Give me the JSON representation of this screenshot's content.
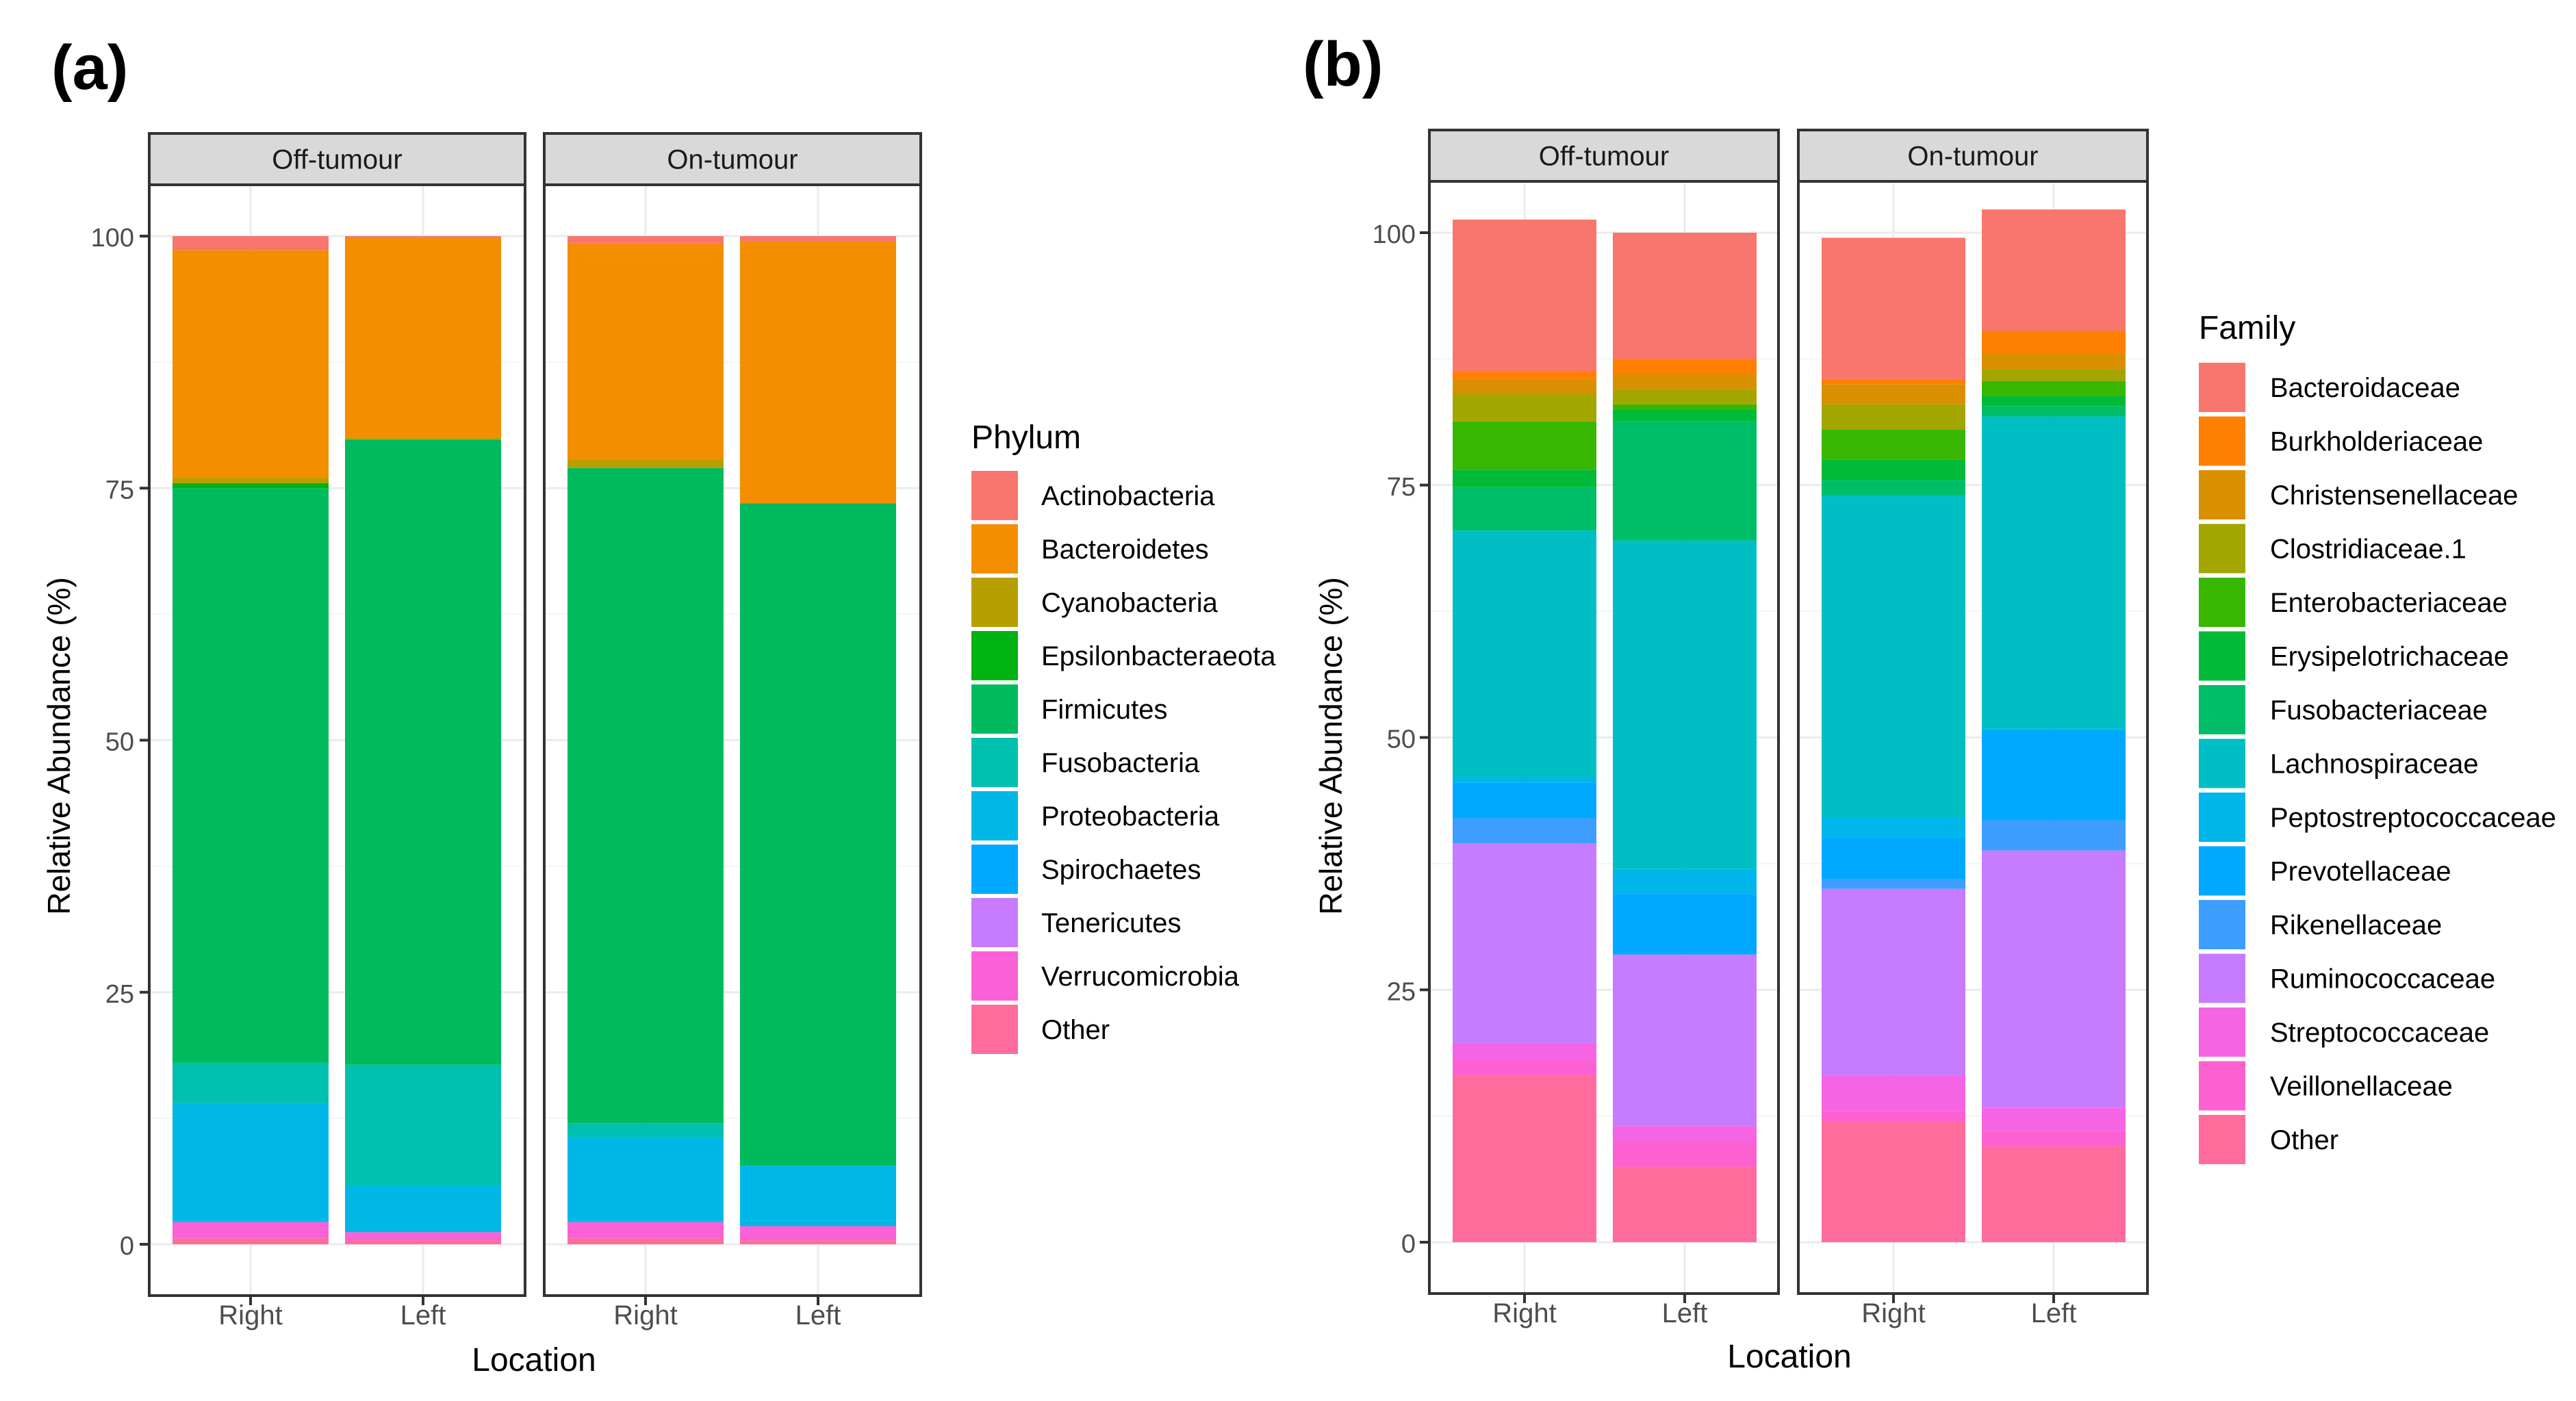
{
  "panels": [
    {
      "label": "(a)",
      "ylabel": "Relative Abundance (%)",
      "xlabel": "Location",
      "legend_title": "Phylum"
    },
    {
      "label": "(b)",
      "ylabel": "Relative Abundance (%)",
      "xlabel": "Location",
      "legend_title": "Family"
    }
  ],
  "chart_data": [
    {
      "type": "bar",
      "stacked": true,
      "facets": [
        "Off-tumour",
        "On-tumour"
      ],
      "categories": [
        "Right",
        "Left"
      ],
      "xlabel": "Location",
      "ylabel": "Relative Abundance (%)",
      "ylim": [
        0,
        100
      ],
      "yticks": [
        0,
        25,
        50,
        75,
        100
      ],
      "grid": true,
      "legend_title": "Phylum",
      "legend_position": "right",
      "series": [
        {
          "name": "Other",
          "color": "#FF6C9C",
          "values": [
            [
              0.6,
              0.4
            ],
            [
              0.6,
              0.4
            ]
          ]
        },
        {
          "name": "Verrucomicrobia",
          "color": "#FB61D7",
          "values": [
            [
              1.6,
              0.8
            ],
            [
              1.6,
              1.4
            ]
          ]
        },
        {
          "name": "Tenericutes",
          "color": "#C77CFF",
          "values": [
            [
              0.0,
              0.0
            ],
            [
              0.0,
              0.0
            ]
          ]
        },
        {
          "name": "Spirochaetes",
          "color": "#00A9FF",
          "values": [
            [
              0.0,
              0.0
            ],
            [
              0.0,
              0.0
            ]
          ]
        },
        {
          "name": "Proteobacteria",
          "color": "#00B8E7",
          "values": [
            [
              11.8,
              4.6
            ],
            [
              8.4,
              6.0
            ]
          ]
        },
        {
          "name": "Fusobacteria",
          "color": "#00C0AF",
          "values": [
            [
              4.0,
              12.0
            ],
            [
              1.4,
              0.0
            ]
          ]
        },
        {
          "name": "Firmicutes",
          "color": "#00BA5E",
          "values": [
            [
              57.0,
              62.0
            ],
            [
              65.0,
              65.7
            ]
          ]
        },
        {
          "name": "Epsilonbacteraeota",
          "color": "#00B212",
          "values": [
            [
              0.5,
              0.0
            ],
            [
              0.0,
              0.0
            ]
          ]
        },
        {
          "name": "Cyanobacteria",
          "color": "#B79F00",
          "values": [
            [
              0.5,
              0.2
            ],
            [
              0.8,
              0.0
            ]
          ]
        },
        {
          "name": "Bacteroidetes",
          "color": "#F28E00",
          "values": [
            [
              22.6,
              19.8
            ],
            [
              21.5,
              26.0
            ]
          ]
        },
        {
          "name": "Actinobacteria",
          "color": "#F8766D",
          "values": [
            [
              1.4,
              0.2
            ],
            [
              0.7,
              0.5
            ]
          ]
        }
      ]
    },
    {
      "type": "bar",
      "stacked": true,
      "facets": [
        "Off-tumour",
        "On-tumour"
      ],
      "categories": [
        "Right",
        "Left"
      ],
      "xlabel": "Location",
      "ylabel": "Relative Abundance (%)",
      "ylim": [
        0,
        100
      ],
      "yticks": [
        0,
        25,
        50,
        75,
        100
      ],
      "grid": true,
      "legend_title": "Family",
      "legend_position": "right",
      "series": [
        {
          "name": "Other",
          "color": "#FF6C9C",
          "values": [
            [
              16.5,
              7.5
            ],
            [
              12.0,
              9.5
            ]
          ]
        },
        {
          "name": "Veillonellaceae",
          "color": "#FD61D1",
          "values": [
            [
              1.5,
              2.5
            ],
            [
              1.0,
              1.5
            ]
          ]
        },
        {
          "name": "Streptococcaceae",
          "color": "#F564E3",
          "values": [
            [
              1.7,
              1.5
            ],
            [
              3.5,
              2.3
            ]
          ]
        },
        {
          "name": "Ruminococcaceae",
          "color": "#C77CFF",
          "values": [
            [
              19.8,
              17.0
            ],
            [
              18.5,
              25.5
            ]
          ]
        },
        {
          "name": "Rikenellaceae",
          "color": "#3D9EFF",
          "values": [
            [
              2.5,
              0.0
            ],
            [
              1.0,
              3.0
            ]
          ]
        },
        {
          "name": "Prevotellaceae",
          "color": "#00A9FF",
          "values": [
            [
              3.5,
              6.0
            ],
            [
              4.0,
              9.0
            ]
          ]
        },
        {
          "name": "Peptostreptococcaceae",
          "color": "#00B6EB",
          "values": [
            [
              0.5,
              2.5
            ],
            [
              2.0,
              0.0
            ]
          ]
        },
        {
          "name": "Lachnospiraceae",
          "color": "#00BFC4",
          "values": [
            [
              24.5,
              32.5
            ],
            [
              32.0,
              31.0
            ]
          ]
        },
        {
          "name": "Fusobacteriaceae",
          "color": "#00BE67",
          "values": [
            [
              4.3,
              11.8
            ],
            [
              1.5,
              1.0
            ]
          ]
        },
        {
          "name": "Erysipelotrichaceae",
          "color": "#00BA38",
          "values": [
            [
              1.7,
              1.2
            ],
            [
              2.0,
              1.0
            ]
          ]
        },
        {
          "name": "Enterobacteriaceae",
          "color": "#39B600",
          "values": [
            [
              4.8,
              0.5
            ],
            [
              3.0,
              1.5
            ]
          ]
        },
        {
          "name": "Clostridiaceae.1",
          "color": "#A3A500",
          "values": [
            [
              2.7,
              1.5
            ],
            [
              2.5,
              1.2
            ]
          ]
        },
        {
          "name": "Christensenellaceae",
          "color": "#D89000",
          "values": [
            [
              1.5,
              1.5
            ],
            [
              2.0,
              1.5
            ]
          ]
        },
        {
          "name": "Burkholderiaceae",
          "color": "#FF7F00",
          "values": [
            [
              0.8,
              1.5
            ],
            [
              0.5,
              2.3
            ]
          ]
        },
        {
          "name": "Bacteroidaceae",
          "color": "#F8766D",
          "values": [
            [
              15.0,
              12.5
            ],
            [
              14.0,
              12.0
            ]
          ]
        }
      ]
    }
  ]
}
